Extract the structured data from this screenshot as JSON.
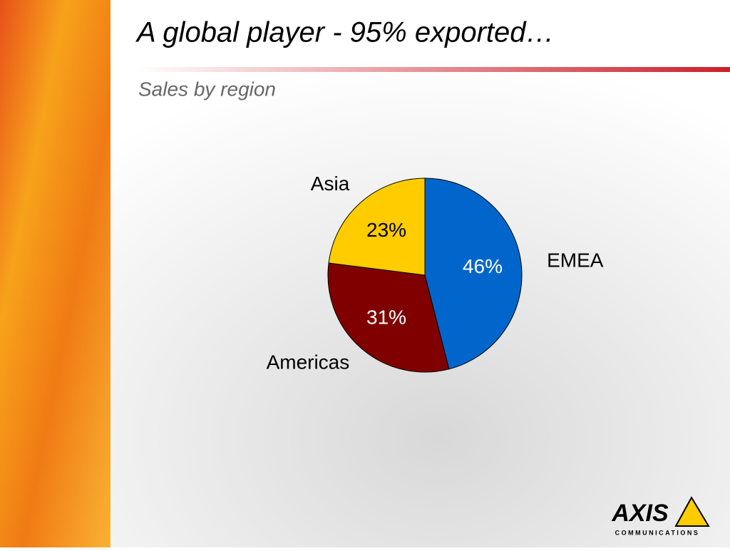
{
  "chart_data": {
    "type": "pie",
    "title": "A global player - 95% exported…",
    "subtitle": "Sales by region",
    "categories": [
      "EMEA",
      "Americas",
      "Asia"
    ],
    "values": [
      46,
      31,
      23
    ],
    "value_labels": [
      "46%",
      "31%",
      "23%"
    ],
    "colors": [
      "#0066cc",
      "#800000",
      "#ffcc00"
    ]
  },
  "logo": {
    "name": "AXIS",
    "tagline": "COMMUNICATIONS"
  }
}
